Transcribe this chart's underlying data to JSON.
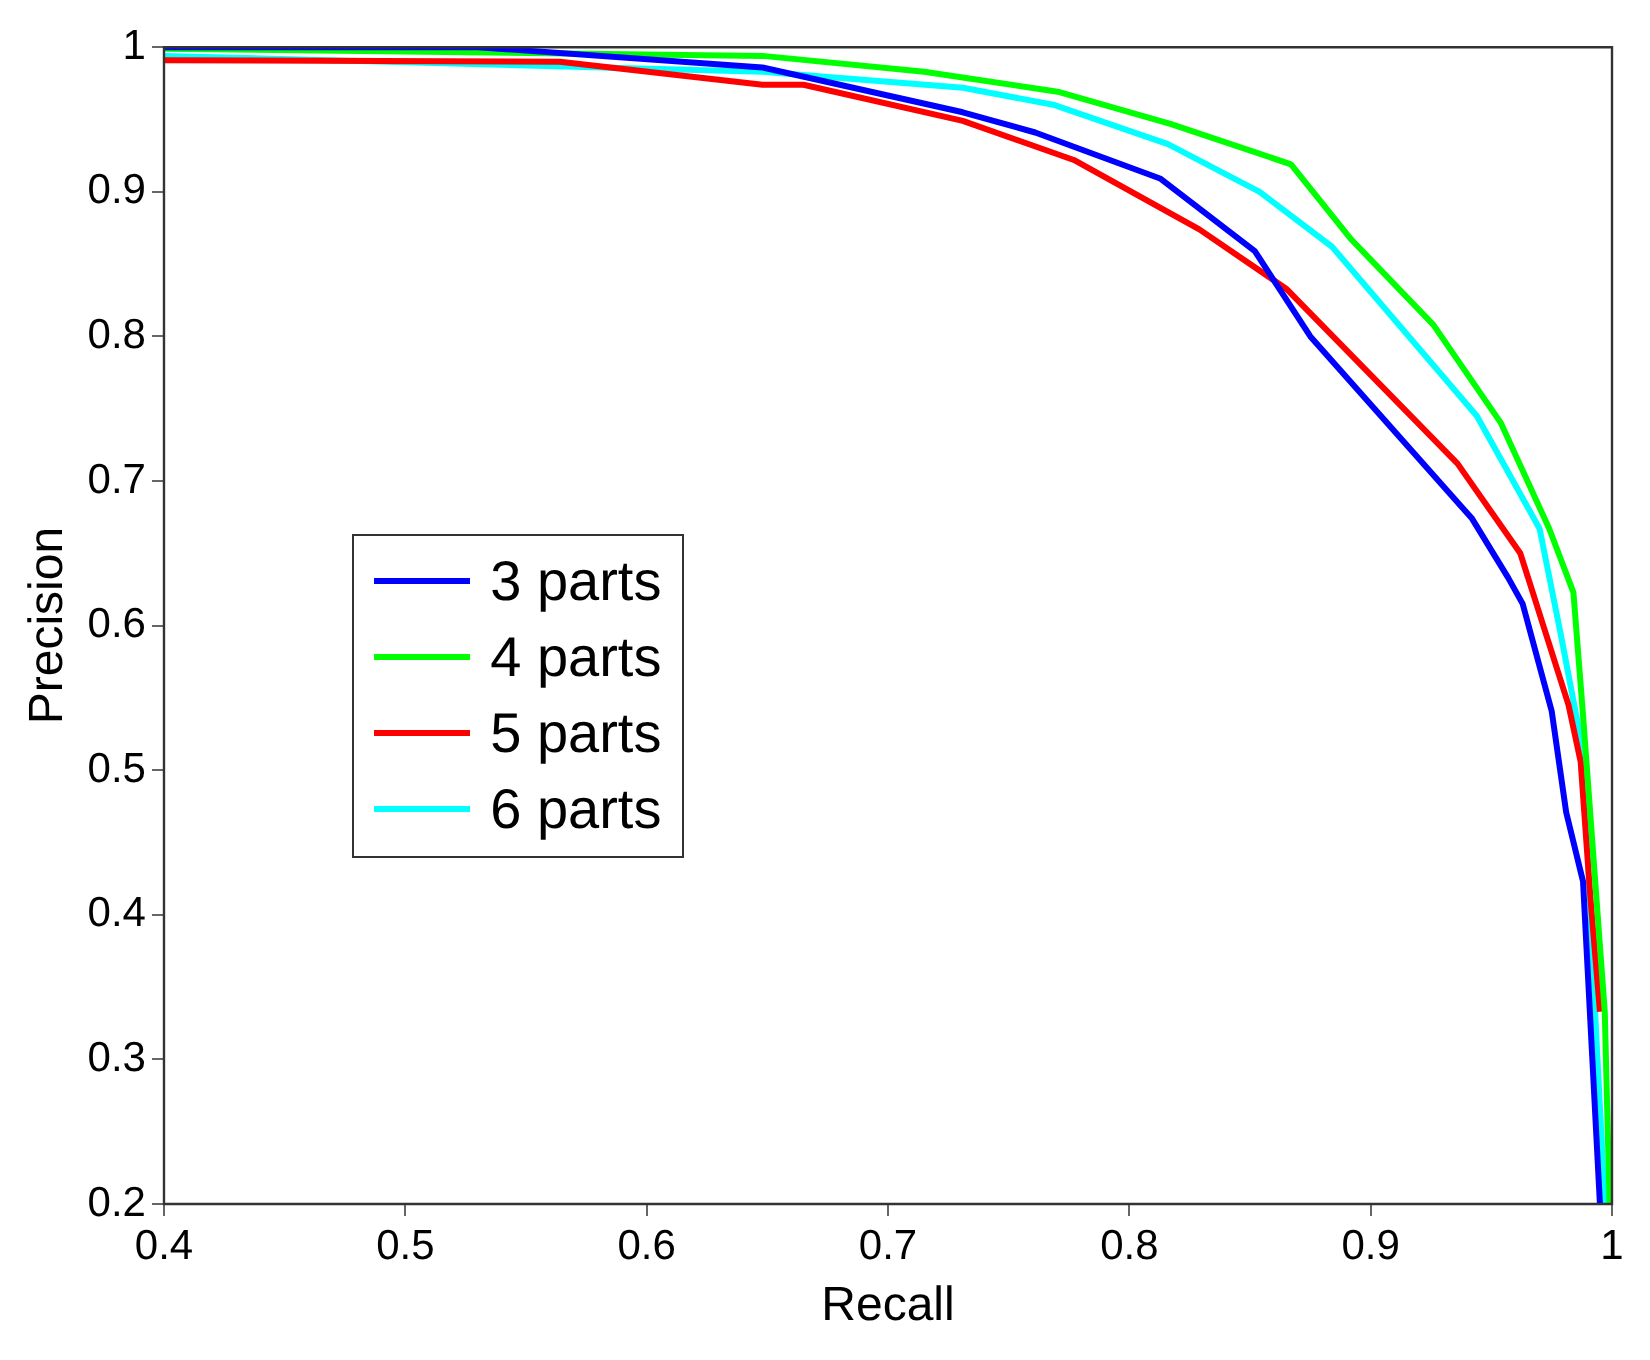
{
  "chart_data": {
    "type": "line",
    "xlabel": "Recall",
    "ylabel": "Precision",
    "xlim": [
      0.4,
      1
    ],
    "ylim": [
      0.2,
      1
    ],
    "xticks": [
      0.4,
      0.5,
      0.6,
      0.7,
      0.8,
      0.9,
      1
    ],
    "yticks": [
      0.2,
      0.3,
      0.4,
      0.5,
      0.6,
      0.7,
      0.8,
      0.9,
      1
    ],
    "grid": false,
    "legend": "left",
    "marker": "none",
    "line_style": "solid",
    "series": [
      {
        "name": "3 parts",
        "color": "#0000ff",
        "x": [
          0.4,
          0.53,
          0.648,
          0.731,
          0.761,
          0.813,
          0.852,
          0.875,
          0.942,
          0.957,
          0.963,
          0.975,
          0.981,
          0.988,
          0.995
        ],
        "values": [
          1.0,
          1.0,
          0.986,
          0.955,
          0.941,
          0.909,
          0.859,
          0.8,
          0.674,
          0.633,
          0.615,
          0.541,
          0.471,
          0.423,
          0.2
        ]
      },
      {
        "name": "4 parts",
        "color": "#00ff00",
        "x": [
          0.4,
          0.648,
          0.715,
          0.771,
          0.817,
          0.867,
          0.892,
          0.926,
          0.954,
          0.974,
          0.984,
          0.988,
          0.997,
          0.999
        ],
        "values": [
          0.999,
          0.994,
          0.983,
          0.969,
          0.947,
          0.919,
          0.867,
          0.808,
          0.74,
          0.667,
          0.623,
          0.538,
          0.333,
          0.2
        ]
      },
      {
        "name": "5 parts",
        "color": "#ff0000",
        "x": [
          0.4,
          0.564,
          0.648,
          0.665,
          0.731,
          0.777,
          0.829,
          0.865,
          0.936,
          0.962,
          0.982,
          0.987,
          0.991,
          0.995
        ],
        "values": [
          0.991,
          0.99,
          0.974,
          0.974,
          0.949,
          0.922,
          0.874,
          0.833,
          0.712,
          0.65,
          0.545,
          0.506,
          0.413,
          0.333
        ]
      },
      {
        "name": "6 parts",
        "color": "#00ffff",
        "x": [
          0.4,
          0.648,
          0.731,
          0.769,
          0.816,
          0.854,
          0.884,
          0.944,
          0.97,
          0.979,
          0.988,
          0.993,
          0.997
        ],
        "values": [
          0.994,
          0.983,
          0.972,
          0.96,
          0.933,
          0.9,
          0.862,
          0.745,
          0.667,
          0.592,
          0.513,
          0.333,
          0.2
        ]
      }
    ]
  }
}
